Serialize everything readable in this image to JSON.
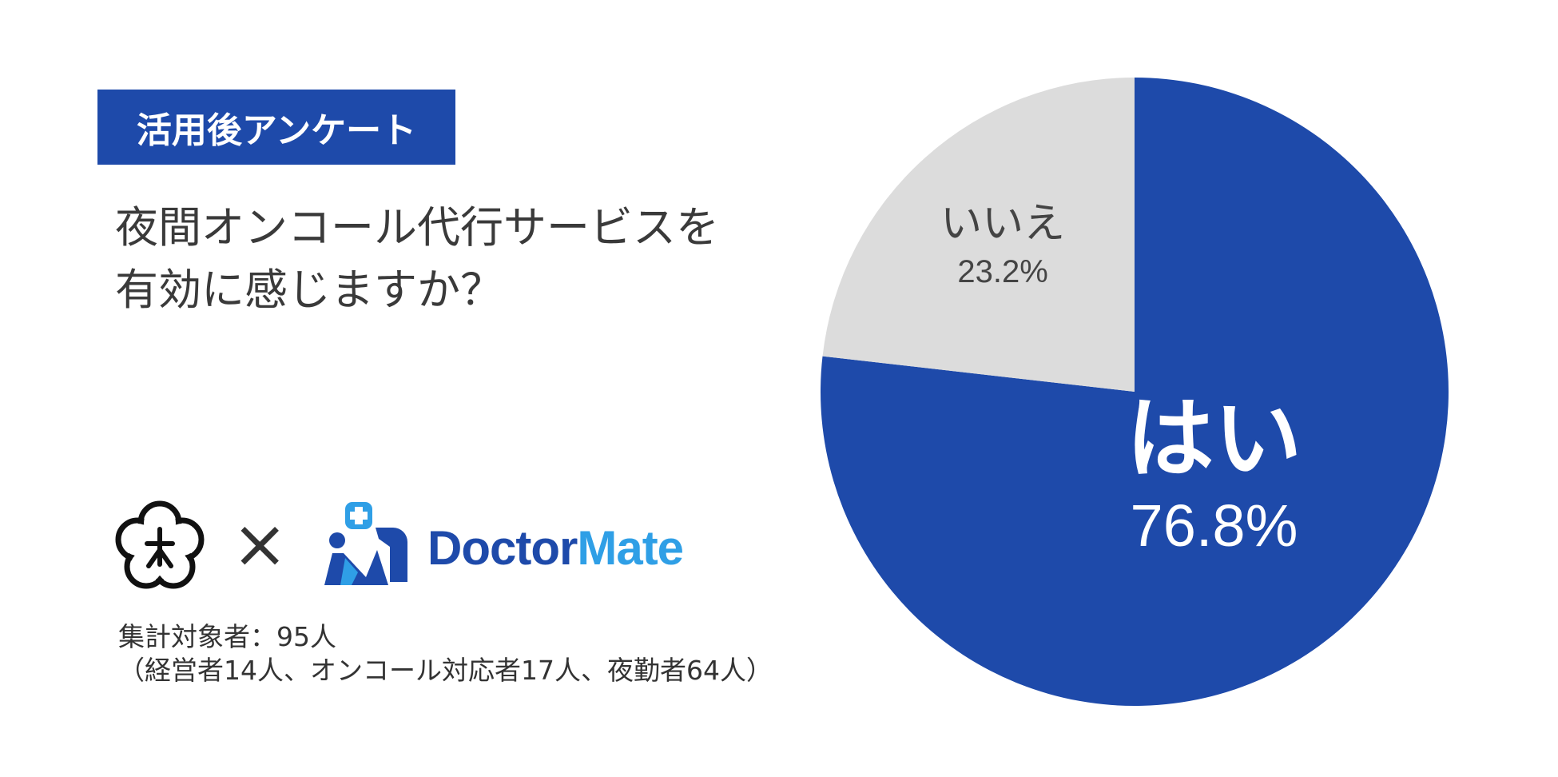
{
  "badge": "活用後アンケート",
  "question": {
    "line1": "夜間オンコール代行サービスを",
    "line2": "有効に感じますか？"
  },
  "logos": {
    "cross": "×",
    "brand_part1": "Doctor",
    "brand_part2": "Mate",
    "icon_left": "plum-blossom-logo",
    "icon_right": "doctormate-figures-logo"
  },
  "notes": {
    "line1": "集計対象者：95人",
    "line2": "（経営者14人、オンコール対応者17人、夜勤者64人）"
  },
  "colors": {
    "accent_blue": "#1e4aaa",
    "light_gray": "#dcdcdc",
    "brand_light_blue": "#2f9fe6"
  },
  "chart_data": {
    "type": "pie",
    "slices": [
      {
        "label": "はい",
        "value": 76.8,
        "display": "76.8%",
        "color": "#1e4aaa",
        "text_color": "#ffffff"
      },
      {
        "label": "いいえ",
        "value": 23.2,
        "display": "23.2%",
        "color": "#dcdcdc",
        "text_color": "#444444"
      }
    ],
    "start_angle_deg": 0,
    "direction": "clockwise"
  }
}
